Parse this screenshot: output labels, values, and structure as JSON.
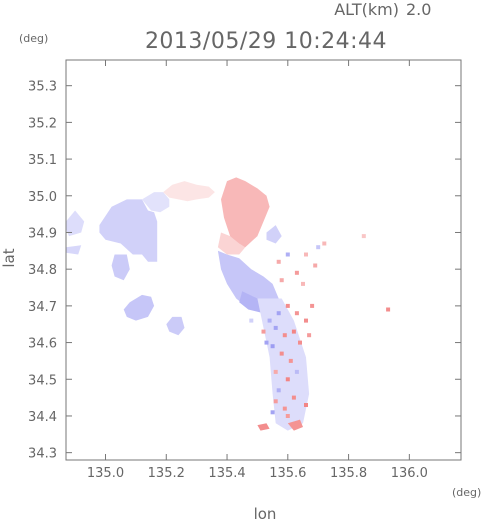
{
  "header": {
    "altitude_label": "ALT(km)",
    "altitude_value": "2.0",
    "timestamp": "2013/05/29 10:24:44"
  },
  "axes": {
    "y_unit": "(deg)",
    "x_unit": "(deg)",
    "xlabel": "lon",
    "ylabel": "lat"
  },
  "chart_data": {
    "type": "heatmap",
    "xlim": [
      134.87,
      136.17
    ],
    "ylim": [
      34.28,
      35.37
    ],
    "x_ticks": [
      135.0,
      135.2,
      135.4,
      135.6,
      135.8,
      136.0
    ],
    "x_tick_labels": [
      "135.0",
      "135.2",
      "135.4",
      "135.6",
      "135.8",
      "136.0"
    ],
    "y_ticks": [
      34.3,
      34.4,
      34.5,
      34.6,
      34.7,
      34.8,
      34.9,
      35.0,
      35.1,
      35.2,
      35.3
    ],
    "y_tick_labels": [
      "34.3",
      "34.4",
      "34.5",
      "34.6",
      "34.7",
      "34.8",
      "34.9",
      "35.0",
      "35.1",
      "35.2",
      "35.3"
    ],
    "colors": {
      "approaching": "#8c8cf0",
      "receding": "#f07070",
      "frame": "#777777"
    },
    "regions": [
      {
        "value": -0.3,
        "polygon": [
          [
            134.87,
            34.93
          ],
          [
            134.9,
            34.96
          ],
          [
            134.93,
            34.93
          ],
          [
            134.92,
            34.9
          ],
          [
            134.88,
            34.89
          ],
          [
            134.87,
            34.91
          ]
        ]
      },
      {
        "value": -0.35,
        "polygon": [
          [
            134.87,
            34.86
          ],
          [
            134.92,
            34.865
          ],
          [
            134.91,
            34.84
          ],
          [
            134.87,
            34.845
          ]
        ]
      },
      {
        "value": -0.4,
        "polygon": [
          [
            134.98,
            34.92
          ],
          [
            135.02,
            34.97
          ],
          [
            135.07,
            34.99
          ],
          [
            135.12,
            34.99
          ],
          [
            135.14,
            34.96
          ],
          [
            135.16,
            34.955
          ],
          [
            135.17,
            34.93
          ],
          [
            135.17,
            34.82
          ],
          [
            135.14,
            34.82
          ],
          [
            135.12,
            34.84
          ],
          [
            135.09,
            34.84
          ],
          [
            135.05,
            34.87
          ],
          [
            135.0,
            34.88
          ],
          [
            134.98,
            34.9
          ]
        ]
      },
      {
        "value": -0.25,
        "polygon": [
          [
            135.12,
            34.99
          ],
          [
            135.16,
            35.01
          ],
          [
            135.19,
            35.01
          ],
          [
            135.21,
            34.99
          ],
          [
            135.21,
            34.97
          ],
          [
            135.18,
            34.955
          ],
          [
            135.15,
            34.96
          ],
          [
            135.13,
            34.98
          ]
        ]
      },
      {
        "value": 0.18,
        "polygon": [
          [
            135.19,
            35.01
          ],
          [
            135.22,
            35.03
          ],
          [
            135.26,
            35.04
          ],
          [
            135.3,
            35.03
          ],
          [
            135.34,
            35.025
          ],
          [
            135.36,
            35.01
          ],
          [
            135.34,
            34.995
          ],
          [
            135.3,
            34.99
          ],
          [
            135.27,
            34.985
          ],
          [
            135.24,
            34.99
          ],
          [
            135.21,
            34.995
          ]
        ]
      },
      {
        "value": -0.45,
        "polygon": [
          [
            135.03,
            34.84
          ],
          [
            135.07,
            34.84
          ],
          [
            135.08,
            34.8
          ],
          [
            135.06,
            34.77
          ],
          [
            135.03,
            34.78
          ],
          [
            135.02,
            34.81
          ]
        ]
      },
      {
        "value": -0.5,
        "polygon": [
          [
            135.08,
            34.71
          ],
          [
            135.12,
            34.73
          ],
          [
            135.15,
            34.725
          ],
          [
            135.16,
            34.7
          ],
          [
            135.14,
            34.67
          ],
          [
            135.1,
            34.66
          ],
          [
            135.07,
            34.67
          ],
          [
            135.06,
            34.69
          ]
        ]
      },
      {
        "value": -0.45,
        "polygon": [
          [
            135.22,
            34.67
          ],
          [
            135.25,
            34.67
          ],
          [
            135.26,
            34.64
          ],
          [
            135.24,
            34.62
          ],
          [
            135.21,
            34.63
          ],
          [
            135.2,
            34.65
          ]
        ]
      },
      {
        "value": 0.5,
        "polygon": [
          [
            135.4,
            35.04
          ],
          [
            135.43,
            35.05
          ],
          [
            135.46,
            35.04
          ],
          [
            135.5,
            35.02
          ],
          [
            135.53,
            35.0
          ],
          [
            135.54,
            34.97
          ],
          [
            135.52,
            34.93
          ],
          [
            135.5,
            34.89
          ],
          [
            135.46,
            34.86
          ],
          [
            135.43,
            34.86
          ],
          [
            135.41,
            34.89
          ],
          [
            135.39,
            34.94
          ],
          [
            135.38,
            34.99
          ]
        ]
      },
      {
        "value": 0.3,
        "polygon": [
          [
            135.38,
            34.9
          ],
          [
            135.41,
            34.89
          ],
          [
            135.44,
            34.87
          ],
          [
            135.46,
            34.86
          ],
          [
            135.44,
            34.84
          ],
          [
            135.4,
            34.84
          ],
          [
            135.37,
            34.86
          ]
        ]
      },
      {
        "value": -0.5,
        "polygon": [
          [
            135.37,
            34.85
          ],
          [
            135.4,
            34.84
          ],
          [
            135.44,
            34.83
          ],
          [
            135.48,
            34.8
          ],
          [
            135.52,
            34.78
          ],
          [
            135.55,
            34.76
          ],
          [
            135.57,
            34.72
          ],
          [
            135.54,
            34.69
          ],
          [
            135.5,
            34.69
          ],
          [
            135.46,
            34.7
          ],
          [
            135.43,
            34.72
          ],
          [
            135.4,
            34.76
          ],
          [
            135.38,
            34.8
          ]
        ]
      },
      {
        "value": -0.65,
        "polygon": [
          [
            135.45,
            34.74
          ],
          [
            135.5,
            34.72
          ],
          [
            135.54,
            34.7
          ],
          [
            135.52,
            34.68
          ],
          [
            135.47,
            34.69
          ],
          [
            135.44,
            34.71
          ]
        ]
      },
      {
        "value": -0.4,
        "polygon": [
          [
            135.53,
            34.9
          ],
          [
            135.56,
            34.92
          ],
          [
            135.58,
            34.89
          ],
          [
            135.56,
            34.87
          ],
          [
            135.53,
            34.88
          ]
        ]
      },
      {
        "value": -0.3,
        "polygon": [
          [
            135.5,
            34.72
          ],
          [
            135.58,
            34.72
          ],
          [
            135.62,
            34.66
          ],
          [
            135.66,
            34.56
          ],
          [
            135.67,
            34.46
          ],
          [
            135.65,
            34.38
          ],
          [
            135.6,
            34.36
          ],
          [
            135.56,
            34.38
          ],
          [
            135.55,
            34.46
          ],
          [
            135.54,
            34.56
          ],
          [
            135.52,
            34.64
          ]
        ]
      },
      {
        "value": 0.75,
        "polygon": [
          [
            135.6,
            34.38
          ],
          [
            135.64,
            34.39
          ],
          [
            135.65,
            34.37
          ],
          [
            135.62,
            34.36
          ]
        ]
      },
      {
        "value": 0.8,
        "polygon": [
          [
            135.5,
            34.375
          ],
          [
            135.53,
            34.38
          ],
          [
            135.54,
            34.365
          ],
          [
            135.51,
            34.36
          ]
        ]
      }
    ],
    "specks": [
      {
        "x": 135.57,
        "y": 34.82,
        "value": 0.6
      },
      {
        "x": 135.6,
        "y": 34.84,
        "value": -0.7
      },
      {
        "x": 135.63,
        "y": 34.79,
        "value": 0.7
      },
      {
        "x": 135.66,
        "y": 34.84,
        "value": 0.5
      },
      {
        "x": 135.69,
        "y": 34.81,
        "value": 0.6
      },
      {
        "x": 135.7,
        "y": 34.86,
        "value": -0.5
      },
      {
        "x": 135.58,
        "y": 34.77,
        "value": 0.6
      },
      {
        "x": 135.65,
        "y": 34.76,
        "value": 0.5
      },
      {
        "x": 135.6,
        "y": 34.7,
        "value": 0.8
      },
      {
        "x": 135.63,
        "y": 34.68,
        "value": 0.75
      },
      {
        "x": 135.66,
        "y": 34.66,
        "value": 0.8
      },
      {
        "x": 135.68,
        "y": 34.7,
        "value": 0.75
      },
      {
        "x": 135.56,
        "y": 34.64,
        "value": -0.8
      },
      {
        "x": 135.59,
        "y": 34.62,
        "value": 0.8
      },
      {
        "x": 135.62,
        "y": 34.63,
        "value": 0.85
      },
      {
        "x": 135.64,
        "y": 34.6,
        "value": 0.8
      },
      {
        "x": 135.67,
        "y": 34.62,
        "value": 0.7
      },
      {
        "x": 135.55,
        "y": 34.59,
        "value": -0.85
      },
      {
        "x": 135.58,
        "y": 34.57,
        "value": 0.8
      },
      {
        "x": 135.61,
        "y": 34.55,
        "value": 0.75
      },
      {
        "x": 135.53,
        "y": 34.6,
        "value": -0.8
      },
      {
        "x": 135.6,
        "y": 34.5,
        "value": 0.85
      },
      {
        "x": 135.57,
        "y": 34.47,
        "value": -0.7
      },
      {
        "x": 135.62,
        "y": 34.45,
        "value": 0.8
      },
      {
        "x": 135.59,
        "y": 34.42,
        "value": 0.75
      },
      {
        "x": 135.66,
        "y": 34.43,
        "value": 0.85
      },
      {
        "x": 135.55,
        "y": 34.41,
        "value": -0.8
      },
      {
        "x": 135.6,
        "y": 34.4,
        "value": 0.7
      },
      {
        "x": 135.63,
        "y": 34.52,
        "value": -0.6
      },
      {
        "x": 135.56,
        "y": 34.52,
        "value": 0.6
      },
      {
        "x": 135.54,
        "y": 34.66,
        "value": -0.7
      },
      {
        "x": 135.57,
        "y": 34.68,
        "value": -0.8
      },
      {
        "x": 135.52,
        "y": 34.63,
        "value": 0.7
      },
      {
        "x": 135.48,
        "y": 34.66,
        "value": -0.4
      },
      {
        "x": 135.72,
        "y": 34.87,
        "value": 0.5
      },
      {
        "x": 135.85,
        "y": 34.89,
        "value": 0.4
      },
      {
        "x": 135.93,
        "y": 34.69,
        "value": 0.8
      },
      {
        "x": 135.56,
        "y": 34.44,
        "value": 0.7
      }
    ]
  }
}
